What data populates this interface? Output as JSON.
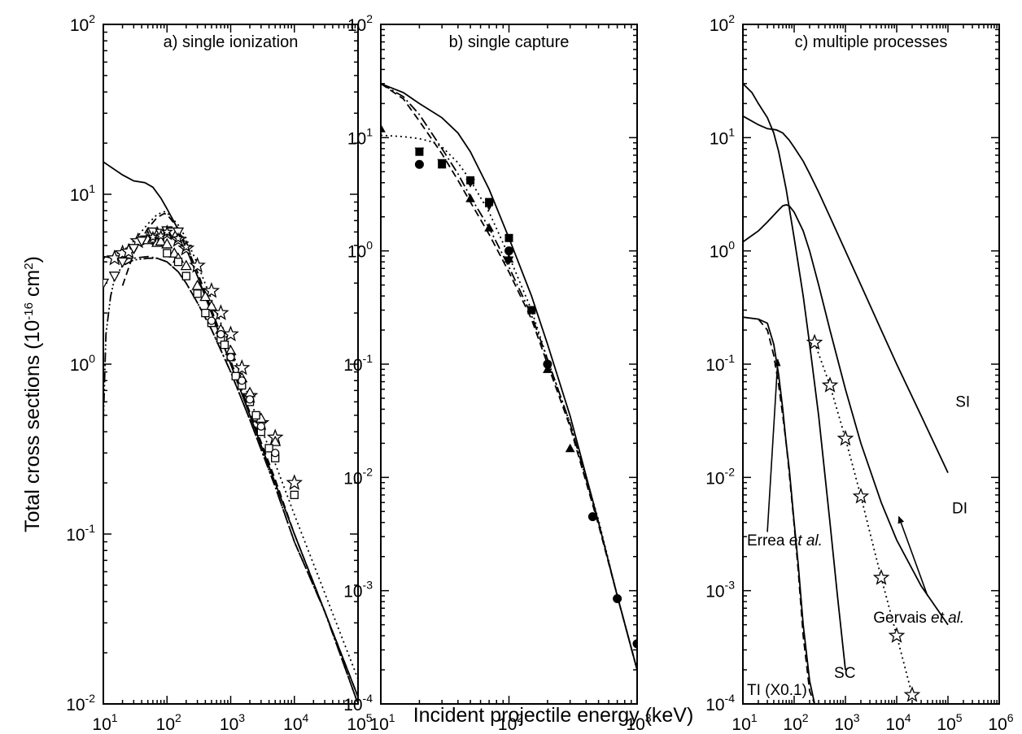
{
  "figure": {
    "ylabel": "Total cross sections (10",
    "ylabel_exp": "-16",
    "ylabel_unit": " cm",
    "ylabel_unit_exp": "2",
    "ylabel_close": ")",
    "xlabel": "Incident projectile energy (keV)"
  },
  "chart_data": [
    {
      "type": "line",
      "title": "a) single ionization",
      "xscale": "log",
      "yscale": "log",
      "xlim": [
        10,
        100000
      ],
      "ylim": [
        0.01,
        100
      ],
      "x_ticks": [
        {
          "b": "10",
          "e": "1"
        },
        {
          "b": "10",
          "e": "2"
        },
        {
          "b": "10",
          "e": "3"
        },
        {
          "b": "10",
          "e": "4"
        },
        {
          "b": "10",
          "e": "5"
        }
      ],
      "y_ticks": [
        {
          "b": "10",
          "e": "-2"
        },
        {
          "b": "10",
          "e": "-1"
        },
        {
          "b": "10",
          "e": "0"
        },
        {
          "b": "10",
          "e": "1"
        },
        {
          "b": "10",
          "e": "2"
        }
      ],
      "series": [
        {
          "style": "solid",
          "x": [
            10,
            20,
            30,
            45,
            60,
            80,
            100,
            150,
            200,
            300,
            500,
            1000,
            2000,
            5000,
            10000,
            30000,
            100000
          ],
          "y": [
            15.5,
            13,
            12,
            11.7,
            11,
            9.5,
            8.2,
            6.2,
            4.8,
            3.3,
            2,
            1.0,
            0.5,
            0.2,
            0.1,
            0.035,
            0.011
          ]
        },
        {
          "style": "dotted",
          "x": [
            10,
            20,
            30,
            50,
            70,
            90,
            100,
            150,
            200,
            300,
            500,
            1000,
            2000,
            5000,
            10000,
            30000,
            100000
          ],
          "y": [
            4.2,
            4.6,
            5.3,
            6.7,
            7.6,
            7.9,
            7.8,
            6.6,
            5.5,
            3.9,
            2.4,
            1.25,
            0.62,
            0.26,
            0.13,
            0.045,
            0.014
          ]
        },
        {
          "style": "dashed",
          "x": [
            20,
            30,
            50,
            70,
            90,
            100,
            150,
            200,
            300,
            500,
            1000,
            2000,
            5000,
            10000,
            30000,
            100000
          ],
          "y": [
            2.9,
            4.5,
            6.3,
            7.3,
            7.7,
            7.6,
            6.3,
            5,
            3.5,
            2.1,
            1.05,
            0.52,
            0.21,
            0.1,
            0.035,
            0.011
          ]
        },
        {
          "style": "dashdot",
          "x": [
            10,
            15,
            20,
            30,
            50,
            70,
            100,
            150,
            200,
            300,
            500,
            1000,
            2000,
            5000,
            10000,
            30000,
            100000
          ],
          "y": [
            4.3,
            4.2,
            4.2,
            4.2,
            4.3,
            4.2,
            4.0,
            3.5,
            3.0,
            2.3,
            1.6,
            0.9,
            0.47,
            0.19,
            0.09,
            0.035,
            0.01
          ]
        },
        {
          "style": "dashdotdot",
          "x": [
            10,
            11,
            13,
            15,
            20,
            30,
            50,
            70,
            100,
            150,
            200,
            300,
            500,
            1000,
            2000,
            5000,
            10000,
            30000,
            100000
          ],
          "y": [
            0.45,
            1.5,
            2.5,
            3.2,
            3.8,
            4.1,
            4.2,
            4.2,
            4.0,
            3.5,
            3.0,
            2.3,
            1.6,
            0.9,
            0.47,
            0.19,
            0.09,
            0.035,
            0.01
          ]
        }
      ],
      "markers": [
        {
          "shape": "star-open",
          "x": [
            15,
            20,
            25,
            35,
            50,
            70,
            100,
            150,
            200,
            300,
            500,
            700,
            1000,
            1500,
            2000,
            3000,
            5000,
            10000
          ],
          "y": [
            4.2,
            4.5,
            4.6,
            5.3,
            5.5,
            5.8,
            5.9,
            5.4,
            4.8,
            3.8,
            2.7,
            2.0,
            1.5,
            0.95,
            0.65,
            0.45,
            0.37,
            0.2
          ]
        },
        {
          "shape": "tri-down-open",
          "x": [
            10,
            15,
            20,
            30,
            40,
            60,
            80,
            100,
            120,
            150
          ],
          "y": [
            3.0,
            3.3,
            4.0,
            4.8,
            5.3,
            6.0,
            5.9,
            6.1,
            6.0,
            6.0
          ]
        },
        {
          "shape": "tri-up-open",
          "x": [
            50,
            60,
            70,
            80,
            100,
            130,
            150,
            200,
            300,
            400,
            500,
            700,
            1000,
            1500,
            2000,
            3000,
            5000
          ],
          "y": [
            5.4,
            5.5,
            5.2,
            5.3,
            5.1,
            4.5,
            4.2,
            3.8,
            2.9,
            2.5,
            2.2,
            1.6,
            1.2,
            0.83,
            0.68,
            0.48,
            0.35
          ]
        },
        {
          "shape": "square-open",
          "x": [
            100,
            150,
            200,
            300,
            400,
            500,
            700,
            800,
            1000,
            1200,
            1500,
            2000,
            2500,
            3000,
            4000,
            5000,
            10000
          ],
          "y": [
            4.5,
            4.0,
            3.3,
            2.6,
            2.0,
            1.75,
            1.4,
            1.3,
            1.1,
            0.85,
            0.75,
            0.6,
            0.5,
            0.4,
            0.32,
            0.28,
            0.17
          ]
        },
        {
          "shape": "circle-open",
          "x": [
            500,
            700,
            1000,
            1500,
            2000,
            3000,
            5000
          ],
          "y": [
            1.8,
            1.5,
            1.1,
            0.8,
            0.62,
            0.43,
            0.3
          ]
        },
        {
          "shape": "star-small",
          "x": [
            60,
            80,
            100,
            150,
            200
          ],
          "y": [
            5.6,
            5.7,
            6.0,
            5.5,
            4.9
          ]
        }
      ]
    },
    {
      "type": "line",
      "title": "b) single capture",
      "xscale": "log",
      "yscale": "log",
      "xlim": [
        10,
        1000
      ],
      "ylim": [
        0.0001,
        100
      ],
      "x_ticks": [
        {
          "b": "10",
          "e": "1"
        },
        {
          "b": "10",
          "e": "2"
        },
        {
          "b": "10",
          "e": "3"
        }
      ],
      "y_ticks": [
        {
          "b": "10",
          "e": "-4"
        },
        {
          "b": "10",
          "e": "-3"
        },
        {
          "b": "10",
          "e": "-2"
        },
        {
          "b": "10",
          "e": "-1"
        },
        {
          "b": "10",
          "e": "0"
        },
        {
          "b": "10",
          "e": "1"
        },
        {
          "b": "10",
          "e": "2"
        }
      ],
      "series": [
        {
          "style": "solid",
          "x": [
            10,
            15,
            20,
            30,
            40,
            50,
            70,
            100,
            150,
            200,
            300,
            500,
            700,
            1000
          ],
          "y": [
            30,
            25,
            20,
            15,
            11,
            7.5,
            3.5,
            1.3,
            0.4,
            0.15,
            0.035,
            0.004,
            0.0009,
            0.0002
          ]
        },
        {
          "style": "dashdot",
          "x": [
            10,
            15,
            20,
            30,
            40,
            50,
            70,
            100,
            150,
            200,
            300,
            500,
            700,
            1000
          ],
          "y": [
            30,
            23,
            16,
            8,
            4.8,
            3.0,
            1.6,
            0.72,
            0.27,
            0.11,
            0.03,
            0.004,
            0.0009,
            0.0002
          ]
        },
        {
          "style": "dashed",
          "x": [
            10,
            15,
            20,
            30,
            40,
            50,
            70,
            100,
            150,
            200,
            300,
            500,
            700,
            1000
          ],
          "y": [
            30,
            22,
            14,
            7.2,
            4.2,
            2.7,
            1.4,
            0.65,
            0.25,
            0.1,
            0.028,
            0.0038,
            0.0009,
            0.0002
          ]
        },
        {
          "style": "dotted",
          "x": [
            10,
            15,
            20,
            25,
            30,
            40,
            50,
            70,
            100,
            150,
            200,
            300,
            500,
            700,
            1000
          ],
          "y": [
            10.5,
            10.2,
            9.8,
            9.2,
            8.3,
            6.0,
            4.2,
            2.2,
            0.9,
            0.3,
            0.11,
            0.03,
            0.0042,
            0.0009,
            0.0002
          ]
        }
      ],
      "markers": [
        {
          "shape": "circle-filled",
          "x": [
            20,
            100,
            200,
            450,
            700,
            1000
          ],
          "y": [
            5.8,
            1.0,
            0.1,
            0.0045,
            0.00085,
            0.00034
          ]
        },
        {
          "shape": "square-filled",
          "x": [
            20,
            30,
            50,
            70,
            100,
            150
          ],
          "y": [
            7.5,
            5.8,
            4.2,
            2.7,
            1.3,
            0.3
          ]
        },
        {
          "shape": "tri-up-filled",
          "x": [
            10,
            50,
            70,
            100,
            200,
            300
          ],
          "y": [
            12,
            2.9,
            1.6,
            0.85,
            0.09,
            0.018
          ]
        },
        {
          "shape": "tri-down-filled",
          "x": [
            20,
            30,
            50,
            70,
            100
          ],
          "y": [
            7.6,
            6.0,
            4.0,
            2.5,
            0.83
          ]
        }
      ]
    },
    {
      "type": "line",
      "title": "c) multiple processes",
      "xscale": "log",
      "yscale": "log",
      "xlim": [
        10,
        1000000
      ],
      "ylim": [
        0.0001,
        100
      ],
      "x_ticks": [
        {
          "b": "10",
          "e": "1"
        },
        {
          "b": "10",
          "e": "2"
        },
        {
          "b": "10",
          "e": "3"
        },
        {
          "b": "10",
          "e": "4"
        },
        {
          "b": "10",
          "e": "5"
        },
        {
          "b": "10",
          "e": "6"
        }
      ],
      "y_ticks": [
        {
          "b": "10",
          "e": "-4"
        },
        {
          "b": "10",
          "e": "-3"
        },
        {
          "b": "10",
          "e": "-2"
        },
        {
          "b": "10",
          "e": "-1"
        },
        {
          "b": "10",
          "e": "0"
        },
        {
          "b": "10",
          "e": "1"
        },
        {
          "b": "10",
          "e": "2"
        }
      ],
      "series": [
        {
          "label": "SI",
          "style": "solid",
          "x": [
            10,
            20,
            30,
            45,
            60,
            80,
            100,
            150,
            200,
            300,
            500,
            1000,
            2000,
            5000,
            10000,
            30000,
            100000
          ],
          "y": [
            15.5,
            13,
            12,
            11.7,
            11,
            9.5,
            8.2,
            6.2,
            4.8,
            3.3,
            2,
            1.0,
            0.5,
            0.2,
            0.1,
            0.035,
            0.011
          ]
        },
        {
          "label": "DI",
          "style": "solid",
          "x": [
            10,
            20,
            30,
            50,
            60,
            70,
            80,
            100,
            150,
            200,
            300,
            500,
            1000,
            2000,
            5000,
            10000,
            30000,
            100000
          ],
          "y": [
            1.2,
            1.5,
            1.8,
            2.3,
            2.5,
            2.55,
            2.5,
            2.2,
            1.5,
            1.0,
            0.5,
            0.2,
            0.06,
            0.02,
            0.006,
            0.0028,
            0.0011,
            0.0005
          ]
        },
        {
          "label": "SC",
          "style": "solid",
          "x": [
            10,
            15,
            20,
            30,
            40,
            50,
            70,
            100,
            150,
            200,
            300,
            500,
            700,
            1000
          ],
          "y": [
            30,
            25,
            20,
            15,
            11,
            7.5,
            3.5,
            1.3,
            0.4,
            0.15,
            0.035,
            0.004,
            0.0009,
            0.0002
          ]
        },
        {
          "label": "TI (X0.1)",
          "style": "solid",
          "x": [
            10,
            20,
            30,
            40,
            50,
            60,
            70,
            80,
            100,
            120,
            150,
            200,
            250
          ],
          "y": [
            0.26,
            0.25,
            0.23,
            0.15,
            0.08,
            0.04,
            0.02,
            0.012,
            0.004,
            0.0017,
            0.0005,
            0.00016,
            0.0001
          ]
        },
        {
          "style": "dashed",
          "x": [
            20,
            30,
            40,
            50,
            60,
            70,
            80,
            100,
            120,
            150,
            200,
            250
          ],
          "y": [
            0.25,
            0.2,
            0.12,
            0.065,
            0.035,
            0.02,
            0.011,
            0.0038,
            0.0015,
            0.0004,
            0.00013,
            0.0001
          ]
        },
        {
          "style": "dotted",
          "x": [
            250,
            500,
            1000,
            2000,
            5000,
            10000,
            20000
          ],
          "y": [
            0.155,
            0.065,
            0.022,
            0.0068,
            0.0013,
            0.0004,
            0.00012
          ]
        }
      ],
      "markers": [
        {
          "shape": "star-open",
          "x": [
            250,
            500,
            1000,
            2000,
            5000,
            10000,
            20000
          ],
          "y": [
            0.155,
            0.065,
            0.022,
            0.0068,
            0.0013,
            0.0004,
            0.00012
          ]
        }
      ],
      "annotations": [
        {
          "text": "SI",
          "x": 140000,
          "y": 0.042
        },
        {
          "text": "DI",
          "x": 120000,
          "y": 0.0048
        },
        {
          "text": "SC",
          "x": 600,
          "y": 0.00017
        },
        {
          "text": "TI (X0.1)",
          "x": 12,
          "y": 0.00012
        },
        {
          "text": "Errea",
          "italic": "et al.",
          "x": 12,
          "y": 0.0025
        },
        {
          "text": "Gervais",
          "italic": "et al.",
          "x": 3500,
          "y": 0.00052
        }
      ],
      "arrows": [
        {
          "from": [
            30,
            0.0033
          ],
          "to": [
            48,
            0.11
          ]
        },
        {
          "from": [
            40000,
            0.0009
          ],
          "to": [
            11000,
            0.0045
          ]
        }
      ]
    }
  ]
}
